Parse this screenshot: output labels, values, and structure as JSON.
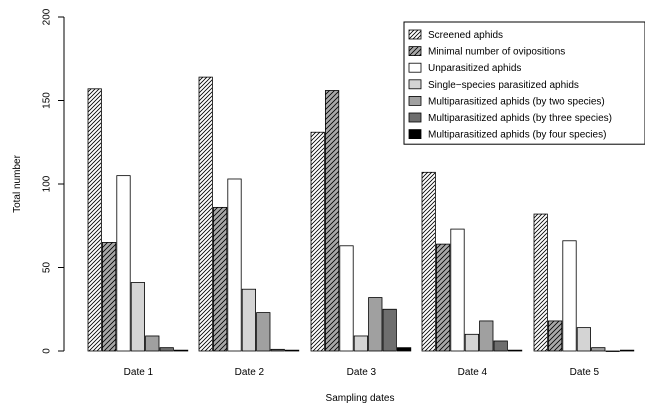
{
  "chart_data": {
    "type": "bar",
    "xlabel": "Sampling dates",
    "ylabel": "Total number",
    "ylim": [
      0,
      200
    ],
    "yticks": [
      0,
      50,
      100,
      150,
      200
    ],
    "legend_position": "top-right",
    "categories": [
      "Date 1",
      "Date 2",
      "Date 3",
      "Date 4",
      "Date 5"
    ],
    "series": [
      {
        "name": "Screened aphids",
        "fill": "#ffffff",
        "pattern": "hatch-dense",
        "values": [
          157,
          164,
          131,
          107,
          82
        ]
      },
      {
        "name": "Minimal number of ovipositions",
        "fill": "#a8a8a8",
        "pattern": "hatch",
        "values": [
          65,
          86,
          156,
          64,
          18
        ]
      },
      {
        "name": "Unparasitized aphids",
        "fill": "#ffffff",
        "pattern": "none",
        "values": [
          105,
          103,
          63,
          73,
          66
        ]
      },
      {
        "name": "Single−species parasitized aphids",
        "fill": "#d4d4d4",
        "pattern": "none",
        "values": [
          41,
          37,
          9,
          10,
          14
        ]
      },
      {
        "name": "Multiparasitized aphids (by two species)",
        "fill": "#a0a0a0",
        "pattern": "none",
        "values": [
          9,
          23,
          32,
          18,
          2
        ]
      },
      {
        "name": "Multiparasitized aphids (by three species)",
        "fill": "#6e6e6e",
        "pattern": "none",
        "values": [
          2,
          1,
          25,
          6,
          0
        ]
      },
      {
        "name": "Multiparasitized aphids (by four species)",
        "fill": "#000000",
        "pattern": "none",
        "values": [
          0.5,
          0.5,
          2,
          0.5,
          0.5
        ]
      }
    ]
  }
}
